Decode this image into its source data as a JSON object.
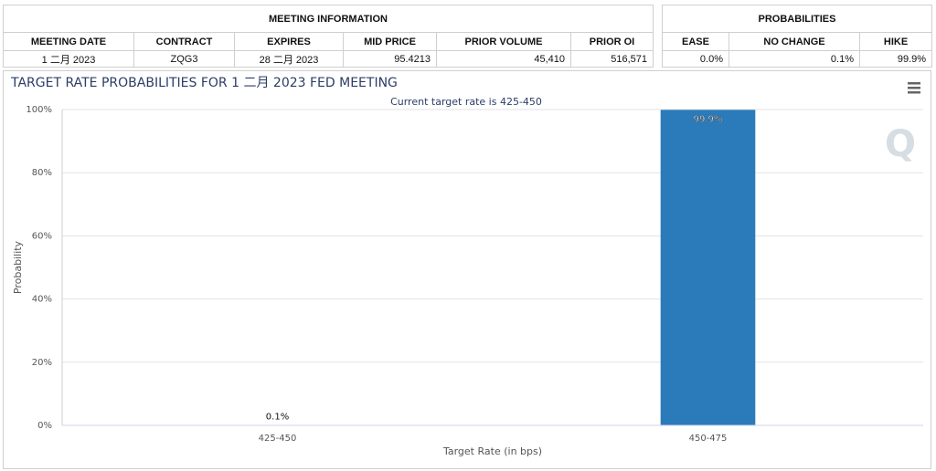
{
  "meeting_information": {
    "title": "MEETING INFORMATION",
    "columns": [
      "MEETING DATE",
      "CONTRACT",
      "EXPIRES",
      "MID PRICE",
      "PRIOR VOLUME",
      "PRIOR OI"
    ],
    "rows": [
      [
        "1 二月 2023",
        "ZQG3",
        "28 二月 2023",
        "95.4213",
        "45,410",
        "516,571"
      ]
    ]
  },
  "probabilities": {
    "title": "PROBABILITIES",
    "columns": [
      "EASE",
      "NO CHANGE",
      "HIKE"
    ],
    "rows": [
      [
        "0.0%",
        "0.1%",
        "99.9%"
      ]
    ]
  },
  "chart_data": {
    "type": "bar",
    "title": "TARGET RATE PROBABILITIES FOR 1 二月 2023 FED MEETING",
    "subtitle": "Current target rate is 425-450",
    "x_label": "Target Rate (in bps)",
    "y_label": "Probability",
    "categories": [
      "425-450",
      "450-475"
    ],
    "values": [
      0.1,
      99.9
    ],
    "value_labels": [
      "0.1%",
      "99.9%"
    ],
    "color": "#2b7bba",
    "ylim": [
      0,
      100
    ],
    "yticks": [
      {
        "value": 0,
        "label": "0%"
      },
      {
        "value": 20,
        "label": "20%"
      },
      {
        "value": 40,
        "label": "40%"
      },
      {
        "value": 60,
        "label": "60%"
      },
      {
        "value": 80,
        "label": "80%"
      },
      {
        "value": 100,
        "label": "100%"
      }
    ],
    "grid": true
  }
}
